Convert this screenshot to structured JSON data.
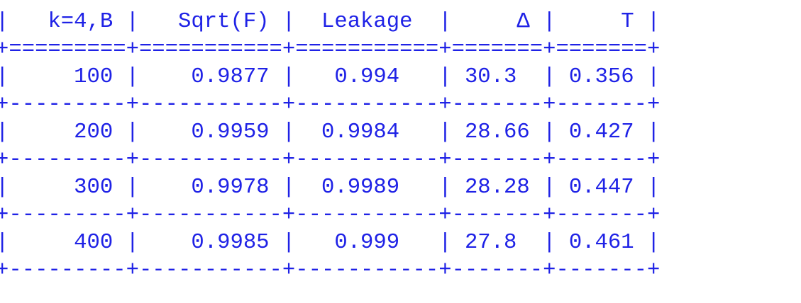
{
  "text_color": "#1f22e6",
  "table": {
    "headers": [
      "k=4,B",
      "Sqrt(F)",
      "Leakage",
      "Δ",
      "T"
    ],
    "rows": [
      [
        "100",
        "0.9877",
        "0.994",
        "30.3",
        "0.356"
      ],
      [
        "200",
        "0.9959",
        "0.9984",
        "28.66",
        "0.427"
      ],
      [
        "300",
        "0.9978",
        "0.9989",
        "28.28",
        "0.447"
      ],
      [
        "400",
        "0.9985",
        "0.999",
        "27.8",
        "0.461"
      ]
    ]
  }
}
